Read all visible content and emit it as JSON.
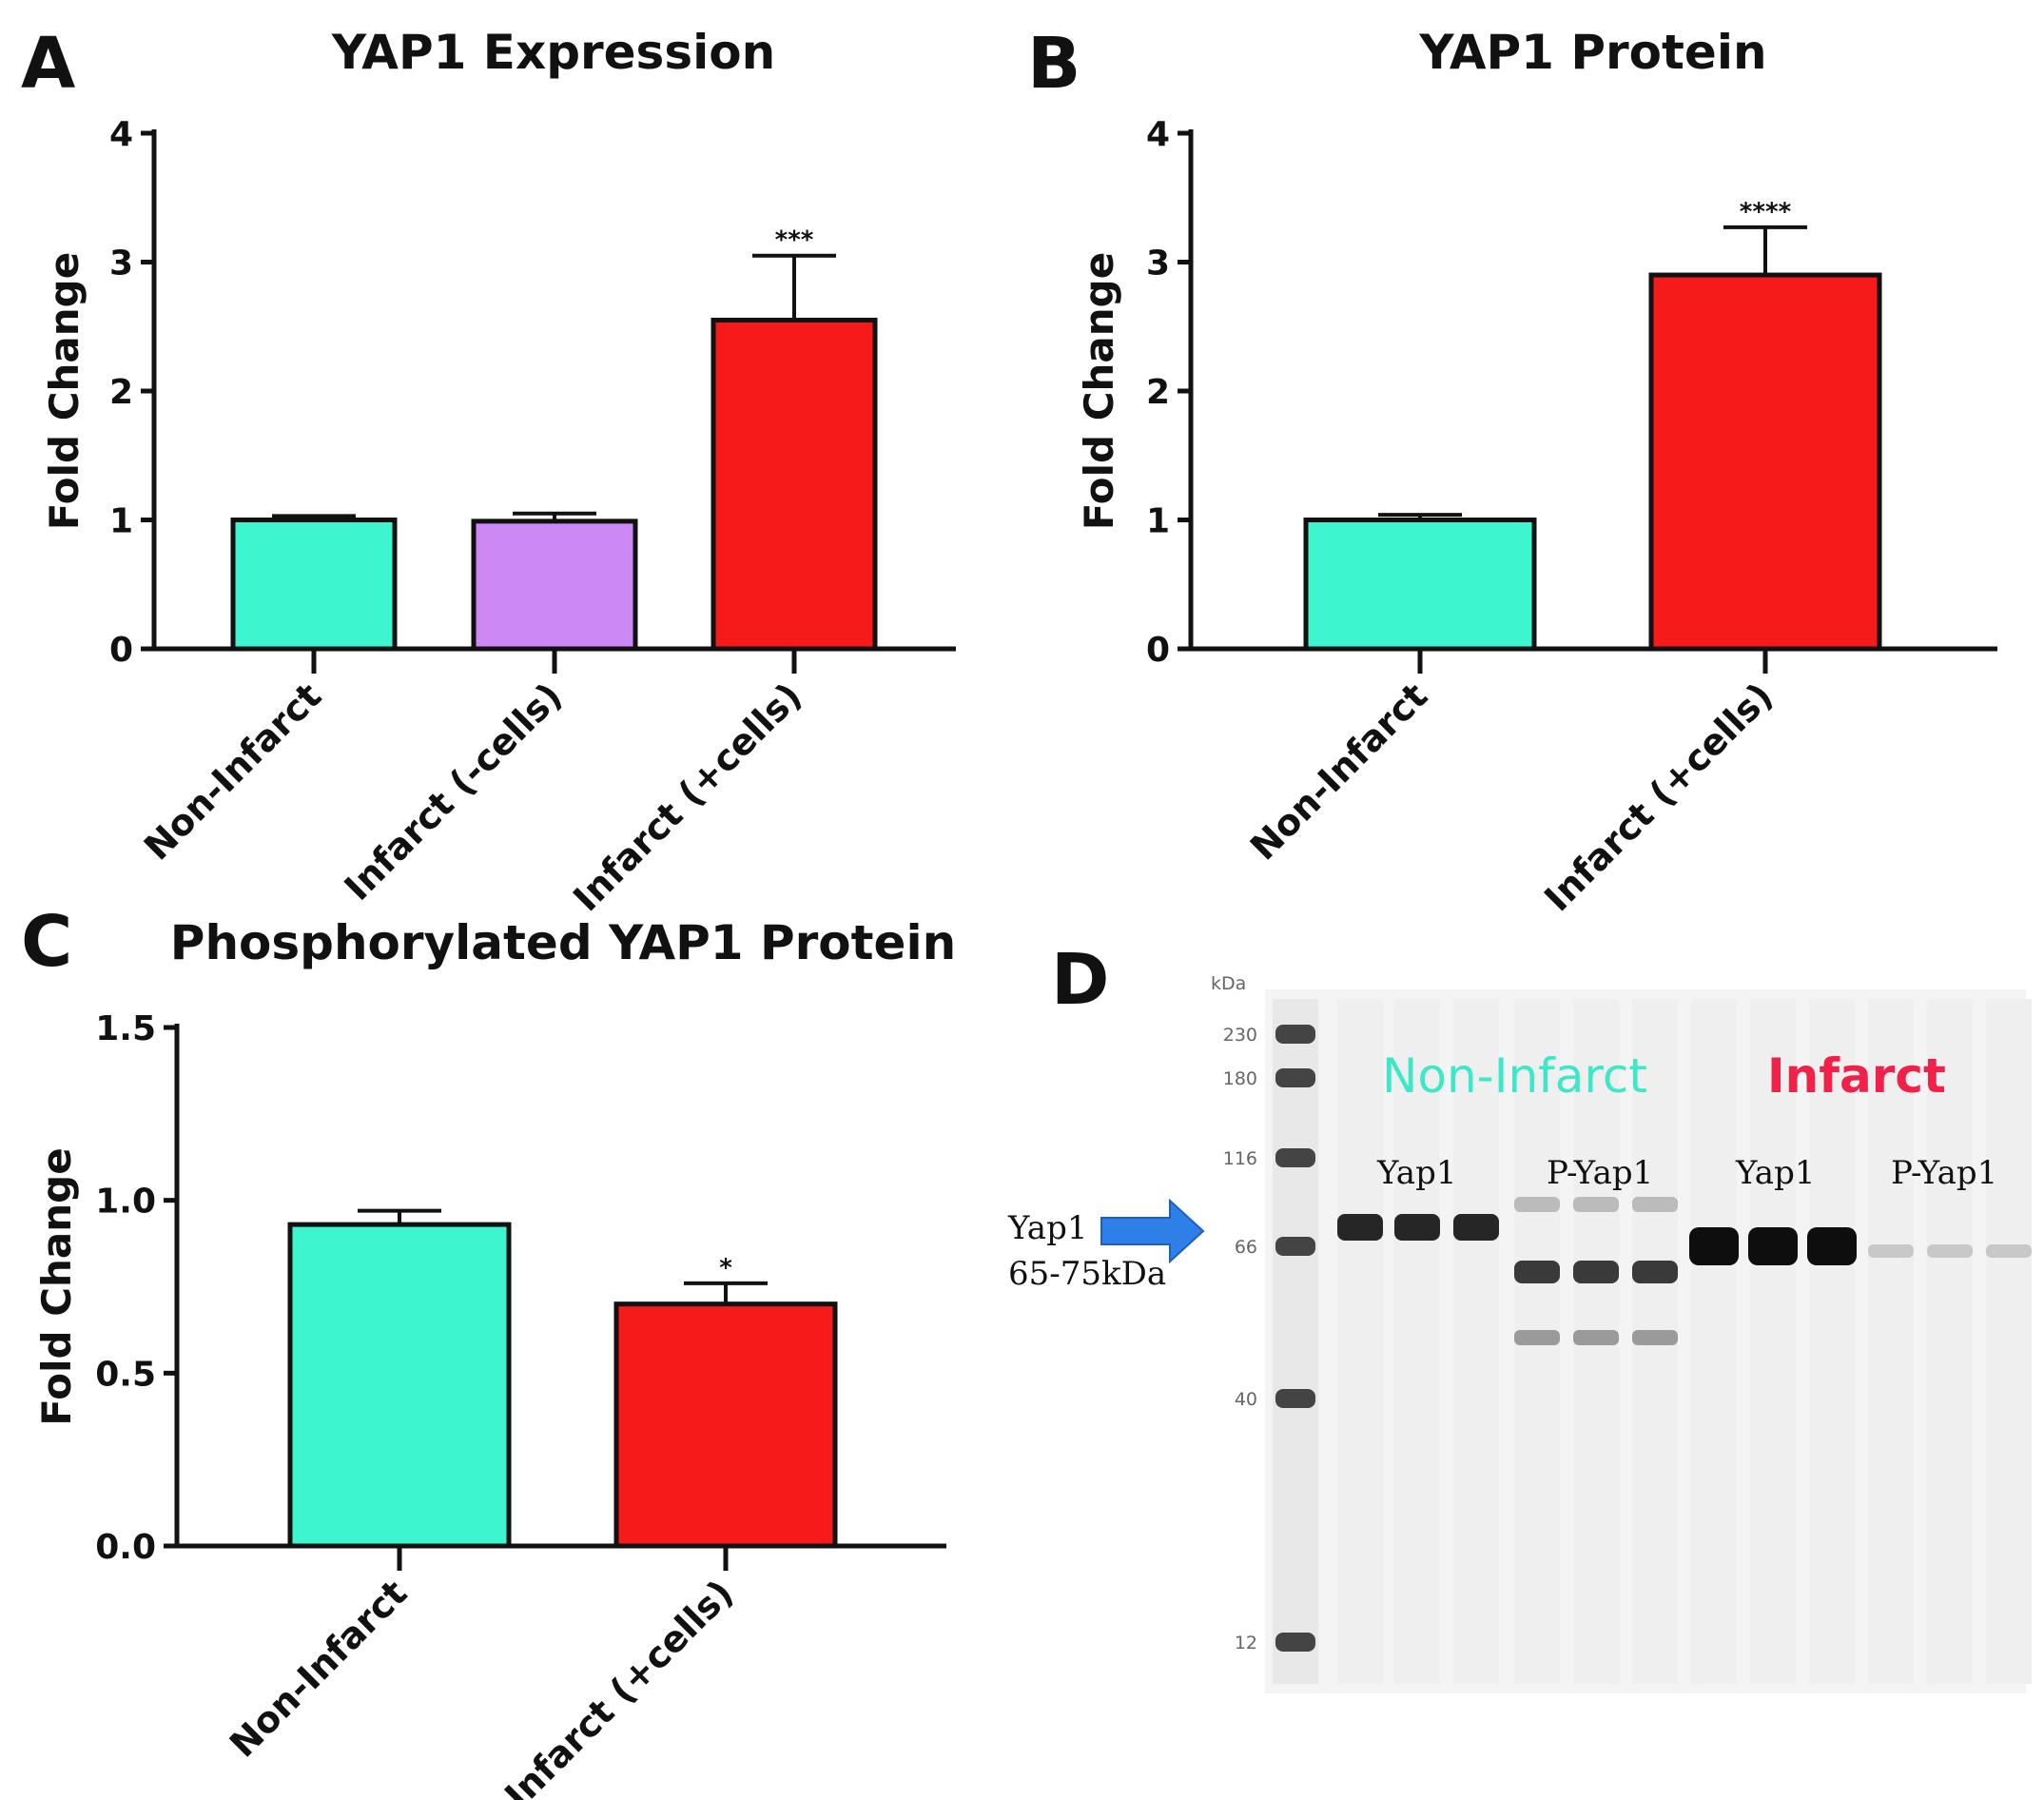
{
  "panels": {
    "A": "A",
    "B": "B",
    "C": "C",
    "D": "D"
  },
  "chart_data": [
    {
      "panel": "A",
      "type": "bar",
      "title": "YAP1 Expression",
      "ylabel": "Fold Change",
      "ylim": [
        0,
        4
      ],
      "yticks": [
        "0",
        "1",
        "2",
        "3",
        "4"
      ],
      "categories": [
        "Non-Infarct",
        "Infarct (-cells)",
        "Infarct (+cells)"
      ],
      "values": [
        1.0,
        0.99,
        2.55
      ],
      "errors": [
        0.03,
        0.06,
        0.5
      ],
      "significance": [
        "",
        "",
        "***"
      ],
      "colors": [
        "#3df5cf",
        "#cc88f5",
        "#f71a1a"
      ]
    },
    {
      "panel": "B",
      "type": "bar",
      "title": "YAP1 Protein",
      "ylabel": "Fold Change",
      "ylim": [
        0,
        4
      ],
      "yticks": [
        "0",
        "1",
        "2",
        "3",
        "4"
      ],
      "categories": [
        "Non-Infarct",
        "Infarct (+cells)"
      ],
      "values": [
        1.0,
        2.9
      ],
      "errors": [
        0.04,
        0.37
      ],
      "significance": [
        "",
        "****"
      ],
      "colors": [
        "#3df5cf",
        "#f71a1a"
      ]
    },
    {
      "panel": "C",
      "type": "bar",
      "title": "Phosphorylated YAP1 Protein",
      "ylabel": "Fold Change",
      "ylim": [
        0,
        1.5
      ],
      "yticks": [
        "0.0",
        "0.5",
        "1.0",
        "1.5"
      ],
      "categories": [
        "Non-Infarct",
        "Infarct (+cells)"
      ],
      "values": [
        0.93,
        0.7
      ],
      "errors": [
        0.04,
        0.06
      ],
      "significance": [
        "",
        "*"
      ],
      "colors": [
        "#3df5cf",
        "#f71a1a"
      ]
    }
  ],
  "blot": {
    "unit": "kDa",
    "ladder": [
      "230",
      "180",
      "116",
      "66",
      "40",
      "12"
    ],
    "groups": [
      {
        "label": "Non-Infarct",
        "color": "#3de8c8"
      },
      {
        "label": "Infarct",
        "color": "#f0224a"
      }
    ],
    "lane_labels": [
      "Yap1",
      "P-Yap1",
      "Yap1",
      "P-Yap1"
    ],
    "arrow_label_line1": "Yap1",
    "arrow_label_line2": "65-75kDa",
    "arrow_color": "#2f7fe8"
  }
}
